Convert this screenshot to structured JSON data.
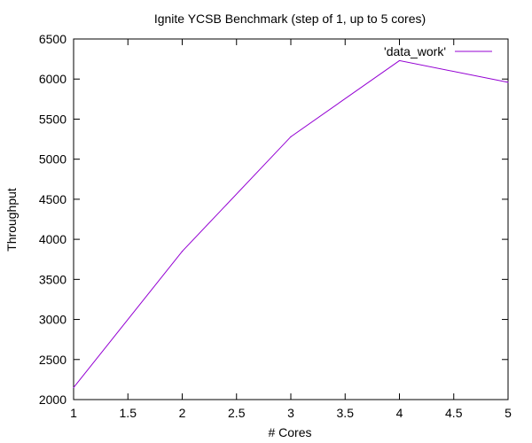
{
  "chart_data": {
    "type": "line",
    "title": "Ignite YCSB Benchmark (step of 1, up to 5 cores)",
    "xlabel": "# Cores",
    "ylabel": "Throughput",
    "xlim": [
      1,
      5
    ],
    "ylim": [
      2000,
      6500
    ],
    "x_ticks": [
      "1",
      "1.5",
      "2",
      "2.5",
      "3",
      "3.5",
      "4",
      "4.5",
      "5"
    ],
    "y_ticks": [
      "2000",
      "2500",
      "3000",
      "3500",
      "4000",
      "4500",
      "5000",
      "5500",
      "6000",
      "6500"
    ],
    "grid": false,
    "legend_position": "top-right",
    "series": [
      {
        "name": "'data_work'",
        "color": "#9400d3",
        "x": [
          1,
          2,
          3,
          4,
          5
        ],
        "y": [
          2150,
          3850,
          5280,
          6230,
          5960
        ]
      }
    ]
  }
}
